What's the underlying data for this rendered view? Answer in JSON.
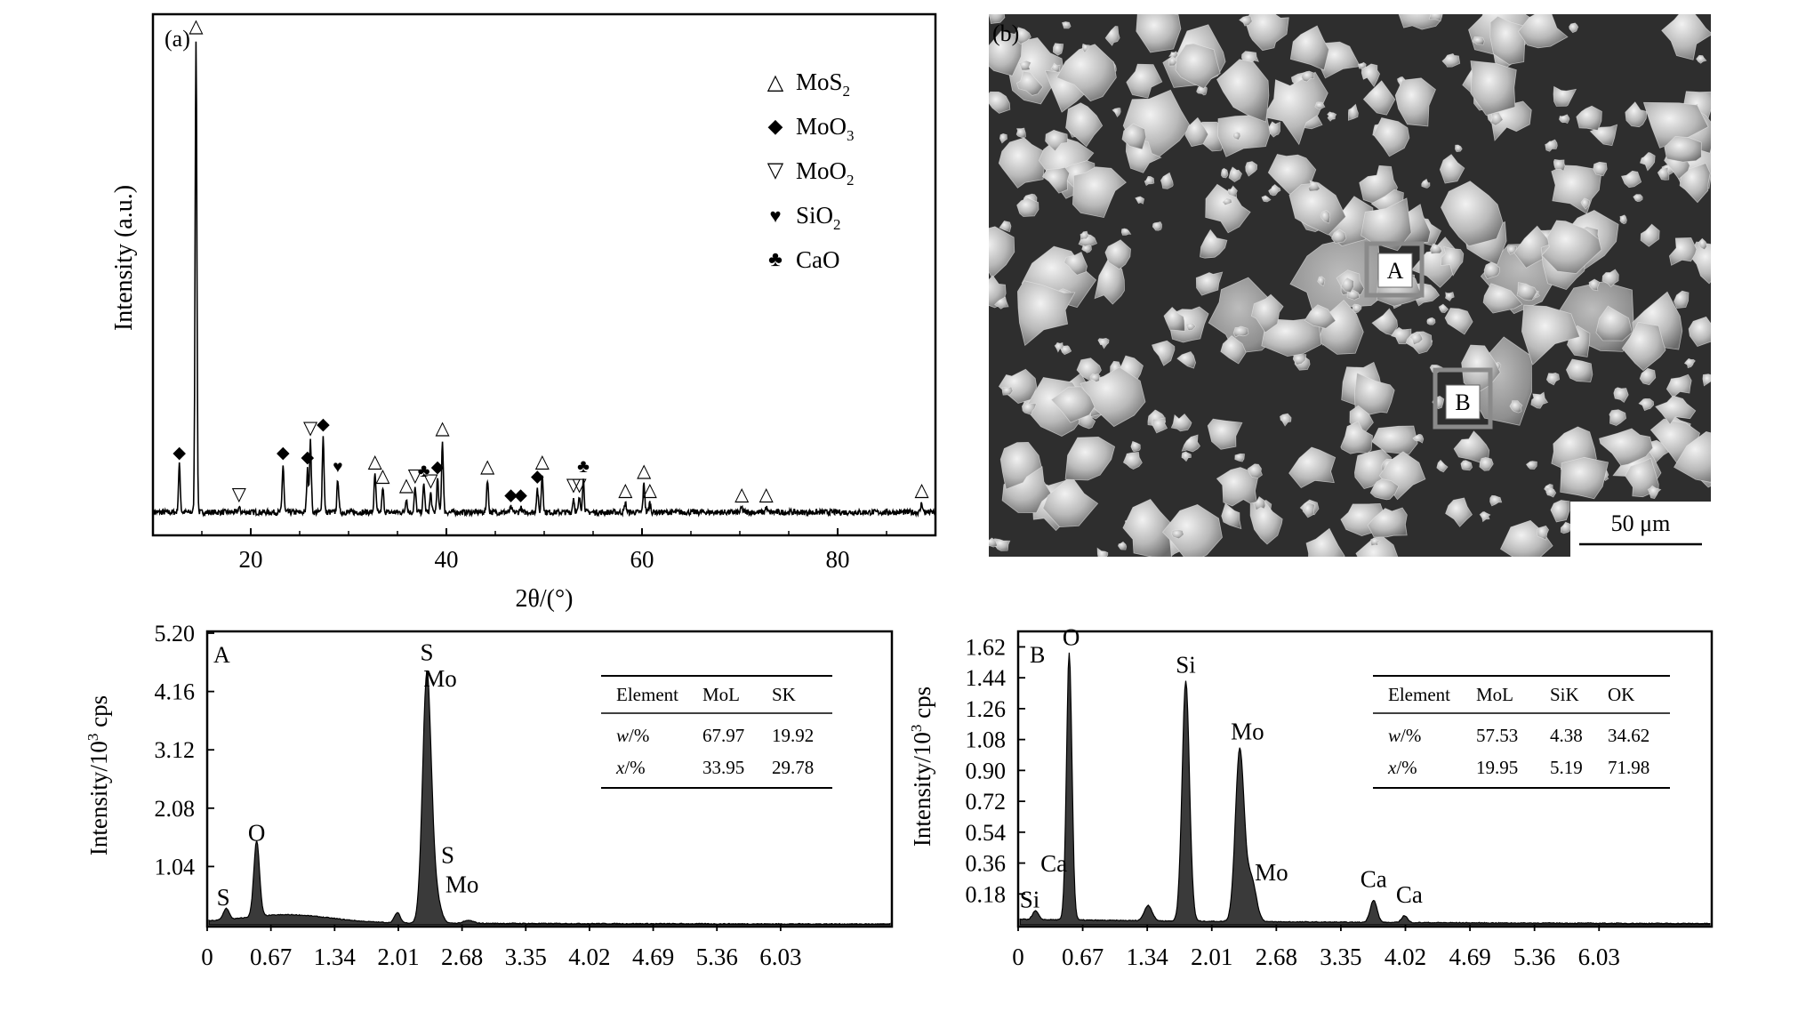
{
  "figure": {
    "panels": {
      "a": {
        "tag": "(a)",
        "xlabel": "2θ/(°)",
        "ylabel": "Intensity (a.u.)",
        "legend": [
          {
            "symbol": "△",
            "text": "MoS",
            "sub": "2"
          },
          {
            "symbol": "◆",
            "text": "MoO",
            "sub": "3"
          },
          {
            "symbol": "▽",
            "text": "MoO",
            "sub": "2"
          },
          {
            "symbol": "♥",
            "text": "SiO",
            "sub": "2"
          },
          {
            "symbol": "♣",
            "text": "CaO",
            "sub": ""
          }
        ]
      },
      "b": {
        "tag": "(b)",
        "scale_bar": "50 μm",
        "box_labels": [
          "A",
          "B"
        ]
      },
      "eds_a": {
        "tag": "A",
        "ylabel_main": "Intensity/10",
        "ylabel_sup": "3",
        "ylabel_tail": " cps",
        "table": {
          "headers": [
            "Element",
            "MoL",
            "SK"
          ],
          "rows": [
            {
              "label_var": "w",
              "label_unit": "/%",
              "values": [
                "67.97",
                "19.92"
              ]
            },
            {
              "label_var": "x",
              "label_unit": "/%",
              "values": [
                "33.95",
                "29.78"
              ]
            }
          ]
        }
      },
      "eds_b": {
        "tag": "B",
        "ylabel_main": "Intensity/10",
        "ylabel_sup": "3",
        "ylabel_tail": " cps",
        "table": {
          "headers": [
            "Element",
            "MoL",
            "SiK",
            "OK"
          ],
          "rows": [
            {
              "label_var": "w",
              "label_unit": "/%",
              "values": [
                "57.53",
                "4.38",
                "34.62"
              ]
            },
            {
              "label_var": "x",
              "label_unit": "/%",
              "values": [
                "19.95",
                "5.19",
                "71.98"
              ]
            }
          ]
        }
      }
    }
  },
  "chart_data": [
    {
      "type": "line",
      "panel": "(a)",
      "xlabel": "2θ/(°)",
      "ylabel": "Intensity (a.u.)",
      "xlim": [
        10,
        90
      ],
      "xticks": [
        20,
        40,
        60,
        80
      ],
      "baseline": 3,
      "peaks": [
        {
          "x": 12.7,
          "h": 10,
          "marker": "◆"
        },
        {
          "x": 14.4,
          "h": 100,
          "marker": "△"
        },
        {
          "x": 18.8,
          "h": 1,
          "marker": "▽"
        },
        {
          "x": 23.3,
          "h": 10,
          "marker": "◆"
        },
        {
          "x": 25.8,
          "h": 9,
          "marker": "◆"
        },
        {
          "x": 26.1,
          "h": 15,
          "marker": "▽"
        },
        {
          "x": 27.4,
          "h": 16,
          "marker": "◆"
        },
        {
          "x": 28.9,
          "h": 7,
          "marker": "♥"
        },
        {
          "x": 32.7,
          "h": 8,
          "marker": "△"
        },
        {
          "x": 33.5,
          "h": 5,
          "marker": "△"
        },
        {
          "x": 35.9,
          "h": 3,
          "marker": "△"
        },
        {
          "x": 36.8,
          "h": 5,
          "marker": "▽"
        },
        {
          "x": 37.7,
          "h": 6,
          "marker": "♣"
        },
        {
          "x": 38.4,
          "h": 4,
          "marker": "▽"
        },
        {
          "x": 39.1,
          "h": 7,
          "marker": "◆"
        },
        {
          "x": 39.6,
          "h": 15,
          "marker": "△"
        },
        {
          "x": 44.2,
          "h": 7,
          "marker": "△"
        },
        {
          "x": 46.6,
          "h": 1,
          "marker": "◆"
        },
        {
          "x": 47.6,
          "h": 1,
          "marker": "◆"
        },
        {
          "x": 49.3,
          "h": 5,
          "marker": "◆"
        },
        {
          "x": 49.8,
          "h": 8,
          "marker": "△"
        },
        {
          "x": 53.0,
          "h": 3,
          "marker": "▽"
        },
        {
          "x": 53.6,
          "h": 3,
          "marker": "▽"
        },
        {
          "x": 54.0,
          "h": 7,
          "marker": "♣"
        },
        {
          "x": 58.3,
          "h": 2,
          "marker": "△"
        },
        {
          "x": 60.2,
          "h": 6,
          "marker": "△"
        },
        {
          "x": 60.8,
          "h": 2,
          "marker": "△"
        },
        {
          "x": 70.2,
          "h": 1,
          "marker": "△"
        },
        {
          "x": 72.7,
          "h": 1,
          "marker": "△"
        },
        {
          "x": 88.6,
          "h": 2,
          "marker": "△"
        }
      ]
    },
    {
      "type": "area",
      "panel": "A",
      "ylabel": "Intensity/10^3 cps",
      "xlim": [
        0,
        7.2
      ],
      "ylim": [
        0,
        5.2
      ],
      "xticks": [
        "0",
        "0.67",
        "1.34",
        "2.01",
        "2.68",
        "3.35",
        "4.02",
        "4.69",
        "5.36",
        "6.03"
      ],
      "yticks": [
        "1.04",
        "2.08",
        "3.12",
        "4.16",
        "5.20"
      ],
      "baseline": 0.04,
      "peaks": [
        {
          "x": 0.2,
          "h": 0.2,
          "w": 0.03
        },
        {
          "x": 0.52,
          "h": 1.35,
          "w": 0.03
        },
        {
          "x": 0.85,
          "h": 0.14,
          "w": 0.45
        },
        {
          "x": 2.0,
          "h": 0.18,
          "w": 0.03
        },
        {
          "x": 2.31,
          "h": 4.4,
          "w": 0.045
        },
        {
          "x": 2.4,
          "h": 0.5,
          "w": 0.05
        },
        {
          "x": 2.75,
          "h": 0.05,
          "w": 0.05
        }
      ],
      "annotations": [
        {
          "text": "S",
          "x": 0.17,
          "y": 0.35
        },
        {
          "text": "O",
          "x": 0.52,
          "y": 1.5
        },
        {
          "text": "S",
          "x": 2.31,
          "y": 4.72
        },
        {
          "text": "Mo",
          "x": 2.45,
          "y": 4.25
        },
        {
          "text": "S",
          "x": 2.53,
          "y": 1.1
        },
        {
          "text": "Mo",
          "x": 2.68,
          "y": 0.58
        }
      ]
    },
    {
      "type": "area",
      "panel": "B",
      "ylabel": "Intensity/10^3 cps",
      "xlim": [
        0,
        7.2
      ],
      "ylim": [
        0,
        1.7
      ],
      "xticks": [
        "0",
        "0.67",
        "1.34",
        "2.01",
        "2.68",
        "3.35",
        "4.02",
        "4.69",
        "5.36",
        "6.03"
      ],
      "yticks": [
        "0.18",
        "0.36",
        "0.54",
        "0.72",
        "0.90",
        "1.08",
        "1.26",
        "1.44",
        "1.62"
      ],
      "baseline": 0.03,
      "peaks": [
        {
          "x": 0.18,
          "h": 0.05,
          "w": 0.03
        },
        {
          "x": 0.53,
          "h": 1.56,
          "w": 0.028
        },
        {
          "x": 1.35,
          "h": 0.09,
          "w": 0.04
        },
        {
          "x": 1.74,
          "h": 1.4,
          "w": 0.038
        },
        {
          "x": 2.3,
          "h": 1.0,
          "w": 0.045
        },
        {
          "x": 2.42,
          "h": 0.25,
          "w": 0.05
        },
        {
          "x": 3.69,
          "h": 0.13,
          "w": 0.035
        },
        {
          "x": 4.01,
          "h": 0.04,
          "w": 0.03
        }
      ],
      "annotations": [
        {
          "text": "Si",
          "x": 0.12,
          "y": 0.1
        },
        {
          "text": "Ca",
          "x": 0.37,
          "y": 0.31
        },
        {
          "text": "O",
          "x": 0.55,
          "y": 1.63
        },
        {
          "text": "Si",
          "x": 1.74,
          "y": 1.47
        },
        {
          "text": "Mo",
          "x": 2.38,
          "y": 1.08
        },
        {
          "text": "Mo",
          "x": 2.63,
          "y": 0.26
        },
        {
          "text": "Ca",
          "x": 3.69,
          "y": 0.22
        },
        {
          "text": "Ca",
          "x": 4.06,
          "y": 0.13
        }
      ]
    }
  ]
}
